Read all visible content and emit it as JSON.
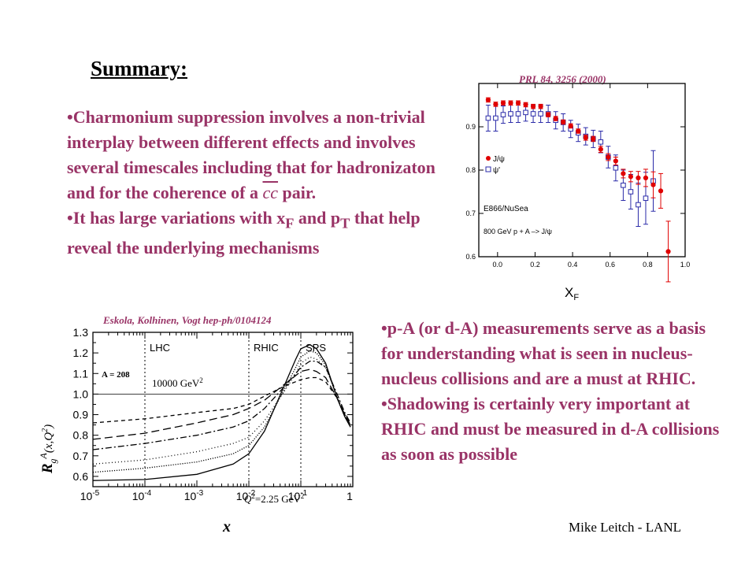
{
  "slide": {
    "title": "Summary:",
    "bullets_top": [
      {
        "pre": "Charmonium suppression involves a non-trivial interplay between different effects and involves several timescales including that for hadronizaton and for the coherence of a ",
        "cc": "cc",
        "post": " pair."
      },
      {
        "pre": "It has large variations with x",
        "sub1": "F",
        "mid": " and p",
        "sub2": "T",
        "post": " that help reveal the underlying mechanisms"
      }
    ],
    "bullets_bottom": [
      "p-A (or d-A) measurements serve as a basis for understanding what is seen in nucleus-nucleus collisions and are a must at RHIC.",
      "Shadowing is certainly very important at RHIC and must be measured in d-A collisions as soon as possible"
    ],
    "footer": "Mike Leitch - LANL"
  },
  "chart_data": [
    {
      "type": "scatter",
      "citation": "PRL 84, 3256 (2000)",
      "xlabel": "X",
      "xlabel_sub": "F",
      "ylabel": "",
      "xlim": [
        -0.1,
        1.0
      ],
      "ylim": [
        0.6,
        1.0
      ],
      "xticks": [
        "0.0",
        "0.2",
        "0.4",
        "0.6",
        "0.8",
        "1.0"
      ],
      "yticks": [
        "0.6",
        "0.7",
        "0.8",
        "0.9"
      ],
      "legend": {
        "placement": "left-middle",
        "entries": [
          "J/ψ",
          "ψ'"
        ]
      },
      "annotations": [
        "E866/NuSea",
        "800 GeV p + A –> J/ψ"
      ],
      "colors": {
        "jpsi": "#e00000",
        "psiprime": "#2a2aa8",
        "frame": "#000000"
      },
      "series": [
        {
          "name": "J/ψ",
          "marker": "filled-circle",
          "x": [
            -0.05,
            -0.01,
            0.03,
            0.07,
            0.11,
            0.15,
            0.19,
            0.23,
            0.27,
            0.31,
            0.35,
            0.39,
            0.43,
            0.47,
            0.51,
            0.55,
            0.59,
            0.63,
            0.67,
            0.71,
            0.75,
            0.79,
            0.83,
            0.87,
            0.91
          ],
          "y": [
            0.962,
            0.952,
            0.955,
            0.955,
            0.955,
            0.951,
            0.947,
            0.947,
            0.928,
            0.919,
            0.911,
            0.902,
            0.89,
            0.875,
            0.872,
            0.848,
            0.83,
            0.821,
            0.792,
            0.785,
            0.782,
            0.782,
            0.766,
            0.752,
            0.612
          ],
          "err": [
            0.005,
            0.005,
            0.005,
            0.005,
            0.005,
            0.005,
            0.005,
            0.005,
            0.005,
            0.005,
            0.005,
            0.005,
            0.005,
            0.006,
            0.006,
            0.007,
            0.008,
            0.009,
            0.01,
            0.012,
            0.015,
            0.02,
            0.03,
            0.04,
            0.07
          ]
        },
        {
          "name": "ψ'",
          "marker": "open-square",
          "x": [
            -0.05,
            -0.01,
            0.03,
            0.07,
            0.11,
            0.15,
            0.19,
            0.23,
            0.27,
            0.31,
            0.35,
            0.39,
            0.43,
            0.47,
            0.51,
            0.55,
            0.59,
            0.63,
            0.67,
            0.71,
            0.75,
            0.79,
            0.83
          ],
          "y": [
            0.92,
            0.92,
            0.928,
            0.93,
            0.93,
            0.933,
            0.93,
            0.93,
            0.93,
            0.915,
            0.91,
            0.895,
            0.886,
            0.878,
            0.872,
            0.865,
            0.83,
            0.805,
            0.765,
            0.75,
            0.72,
            0.735,
            0.775
          ],
          "err": [
            0.03,
            0.03,
            0.02,
            0.02,
            0.02,
            0.02,
            0.02,
            0.02,
            0.02,
            0.02,
            0.02,
            0.02,
            0.02,
            0.02,
            0.02,
            0.025,
            0.025,
            0.03,
            0.035,
            0.04,
            0.05,
            0.06,
            0.07
          ]
        }
      ]
    },
    {
      "type": "line",
      "citation": "Eskola, Kolhinen, Vogt hep-ph/0104124",
      "xlabel": "x",
      "ylabel": "R",
      "ylabel_sub": "g",
      "ylabel_sup": "A",
      "ylabel_args": "(x,Q",
      "ylabel_args_sup": "2",
      "ylabel_args_end": ")",
      "xscale": "log",
      "xlim": [
        1e-05,
        1
      ],
      "ylim": [
        0.55,
        1.3
      ],
      "xticks": [
        {
          "base": "10",
          "exp": "-5"
        },
        {
          "base": "10",
          "exp": "-4"
        },
        {
          "base": "10",
          "exp": "-3"
        },
        {
          "base": "10",
          "exp": "-2"
        },
        {
          "base": "10",
          "exp": "-1"
        },
        {
          "base": "1",
          "exp": ""
        }
      ],
      "yticks": [
        "0.6",
        "0.7",
        "0.8",
        "0.9",
        "1.0",
        "1.1",
        "1.2",
        "1.3"
      ],
      "regions": [
        {
          "label": "LHC",
          "x": 0.0001
        },
        {
          "label": "RHIC",
          "x": 0.01
        },
        {
          "label": "SPS",
          "x": 0.1
        }
      ],
      "annotations": {
        "nucleus": "A = 208",
        "q_high_pre": "10000 GeV",
        "q_high_sup": "2",
        "q_low_pre": "Q",
        "q_low_sup": "2",
        "q_low_post": "=2.25 GeV",
        "q_low_post_sup": "2"
      },
      "series": [
        {
          "style": "solid",
          "x": [
            1e-05,
            0.0001,
            0.001,
            0.005,
            0.01,
            0.02,
            0.05,
            0.08,
            0.1,
            0.15,
            0.2,
            0.3,
            0.5,
            0.7,
            0.9
          ],
          "y": [
            0.58,
            0.585,
            0.61,
            0.66,
            0.71,
            0.82,
            1.05,
            1.17,
            1.22,
            1.24,
            1.22,
            1.15,
            0.98,
            0.89,
            0.84
          ]
        },
        {
          "style": "dense-dotted",
          "x": [
            1e-05,
            0.0001,
            0.001,
            0.005,
            0.01,
            0.02,
            0.05,
            0.08,
            0.1,
            0.15,
            0.2,
            0.3,
            0.5,
            0.7,
            0.9
          ],
          "y": [
            0.62,
            0.64,
            0.67,
            0.71,
            0.75,
            0.84,
            1.03,
            1.13,
            1.18,
            1.21,
            1.2,
            1.14,
            0.98,
            0.89,
            0.84
          ]
        },
        {
          "style": "dotted",
          "x": [
            1e-05,
            0.0001,
            0.001,
            0.005,
            0.01,
            0.02,
            0.05,
            0.08,
            0.1,
            0.15,
            0.2,
            0.3,
            0.5,
            0.7,
            0.9
          ],
          "y": [
            0.66,
            0.68,
            0.72,
            0.76,
            0.79,
            0.87,
            1.02,
            1.1,
            1.15,
            1.18,
            1.17,
            1.13,
            0.99,
            0.9,
            0.85
          ]
        },
        {
          "style": "dash-dot",
          "x": [
            1e-05,
            0.0001,
            0.001,
            0.005,
            0.01,
            0.02,
            0.05,
            0.08,
            0.1,
            0.15,
            0.2,
            0.3,
            0.5,
            0.7,
            0.9
          ],
          "y": [
            0.73,
            0.76,
            0.8,
            0.84,
            0.87,
            0.93,
            1.04,
            1.1,
            1.13,
            1.16,
            1.16,
            1.13,
            1.0,
            0.91,
            0.86
          ]
        },
        {
          "style": "long-dash",
          "x": [
            1e-05,
            0.0001,
            0.001,
            0.005,
            0.01,
            0.02,
            0.05,
            0.08,
            0.1,
            0.15,
            0.2,
            0.3,
            0.5,
            0.7,
            0.9
          ],
          "y": [
            0.78,
            0.81,
            0.86,
            0.9,
            0.93,
            0.97,
            1.05,
            1.09,
            1.11,
            1.12,
            1.11,
            1.08,
            0.98,
            0.9,
            0.85
          ]
        },
        {
          "style": "short-dash",
          "x": [
            1e-05,
            0.0001,
            0.001,
            0.005,
            0.01,
            0.02,
            0.05,
            0.08,
            0.1,
            0.15,
            0.2,
            0.3,
            0.5,
            0.7,
            0.9
          ],
          "y": [
            0.86,
            0.88,
            0.91,
            0.93,
            0.95,
            0.99,
            1.04,
            1.06,
            1.07,
            1.08,
            1.08,
            1.06,
            0.98,
            0.9,
            0.85
          ]
        }
      ]
    }
  ]
}
